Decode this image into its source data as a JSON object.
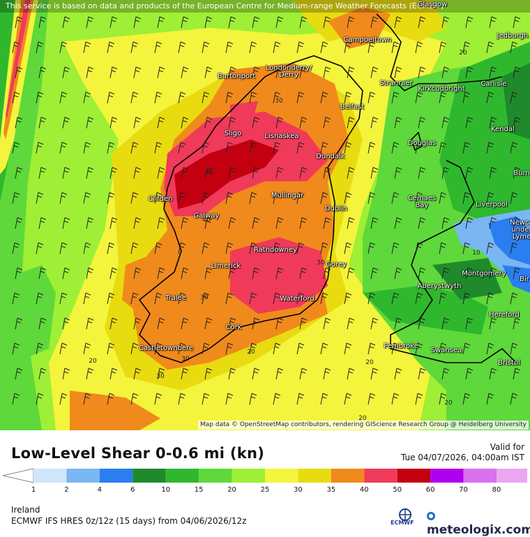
{
  "disclaimer": "This service is based on data and products of the European Centre for Medium-range Weather Forecasts (ECMWF)",
  "attribution": "Map data © OpenStreetMap contributors, rendering GIScience Research Group @ Heidelberg University",
  "title": "Low-Level Shear 0-0.6 mi (kn)",
  "valid_label": "Valid for",
  "valid_time": "Tue 04/07/2026, 04:00am IST",
  "region": "Ireland",
  "model_run": "ECMWF IFS HRES 0z/12z (15 days) from 04/06/2026/12z",
  "brand": "meteologix.com",
  "ecmwf_logo_text": "ECMWF",
  "colorbar": {
    "ticks": [
      "1",
      "2",
      "4",
      "6",
      "10",
      "15",
      "20",
      "25",
      "30",
      "35",
      "40",
      "50",
      "60",
      "70",
      "80"
    ],
    "colors": [
      "#cfe6fb",
      "#79b6f2",
      "#2a7ef0",
      "#1f8a2c",
      "#2fb82e",
      "#5ed83a",
      "#9eef35",
      "#f4f43c",
      "#e8db10",
      "#f08a1c",
      "#f03a5a",
      "#c20010",
      "#b000f0",
      "#d870f0",
      "#eba6f0"
    ]
  },
  "cities": [
    {
      "name": "Glasgow"
    },
    {
      "name": "Jedburgh"
    },
    {
      "name": "Campbeltown"
    },
    {
      "name": "Londonderry/\nDerry"
    },
    {
      "name": "Burtonport"
    },
    {
      "name": "Stranraer"
    },
    {
      "name": "Kirkcudbright"
    },
    {
      "name": "Carlisle"
    },
    {
      "name": "Belfast"
    },
    {
      "name": "Sligo"
    },
    {
      "name": "Lisnaskea"
    },
    {
      "name": "Kendal"
    },
    {
      "name": "Douglas"
    },
    {
      "name": "Dundalk"
    },
    {
      "name": "Burn"
    },
    {
      "name": "Clifden"
    },
    {
      "name": "Mullingar"
    },
    {
      "name": "Cemaes\nBay"
    },
    {
      "name": "Liverpool"
    },
    {
      "name": "Galway"
    },
    {
      "name": "Dublin"
    },
    {
      "name": "Newca\nunder\nLyme"
    },
    {
      "name": "Rathdowney"
    },
    {
      "name": "Limerick"
    },
    {
      "name": "Gorey"
    },
    {
      "name": "Montgomery"
    },
    {
      "name": "Bir"
    },
    {
      "name": "Aberystwyth"
    },
    {
      "name": "Tralee"
    },
    {
      "name": "Waterford"
    },
    {
      "name": "Hereford"
    },
    {
      "name": "Cork"
    },
    {
      "name": "Castletownbere"
    },
    {
      "name": "Pembroke"
    },
    {
      "name": "Swansea"
    },
    {
      "name": "Bristol"
    }
  ],
  "contour_labels": [
    "20",
    "30",
    "40",
    "40",
    "30",
    "30",
    "20",
    "20",
    "10",
    "20",
    "20",
    "20",
    "30",
    "30"
  ]
}
